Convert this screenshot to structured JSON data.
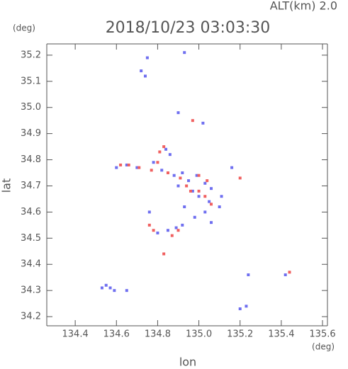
{
  "chart_data": {
    "type": "scatter",
    "title": "2018/10/23 03:03:30",
    "annotations": [
      "ALT(km) 2.0"
    ],
    "x_label": "lon",
    "y_label": "lat",
    "x_unit": "(deg)",
    "y_unit": "(deg)",
    "xlim": [
      134.262,
      135.624
    ],
    "ylim": [
      34.165,
      35.243
    ],
    "xticks": [
      134.4,
      134.6,
      134.8,
      {
        "value": 135,
        "label": "135.0"
      },
      135.2,
      135.4,
      135.6
    ],
    "yticks": [
      34.2,
      34.3,
      34.4,
      34.5,
      34.6,
      34.7,
      34.8,
      34.9,
      {
        "value": 35,
        "label": "35.0"
      },
      35.1,
      35.2
    ],
    "series": [
      {
        "color": "#6f6ff0",
        "x": [
          134.75,
          134.72,
          134.74,
          134.93,
          134.9,
          135.02,
          134.84,
          134.86,
          134.6,
          134.65,
          134.7,
          134.78,
          134.82,
          134.88,
          134.92,
          134.95,
          134.9,
          134.97,
          135.0,
          135.05,
          135.03,
          134.98,
          135.06,
          135.1,
          135.16,
          135.11,
          134.76,
          134.8,
          134.85,
          134.89,
          134.92,
          134.55,
          134.57,
          134.59,
          134.53,
          134.65,
          135.24,
          135.42,
          135.2,
          135.23,
          134.99,
          135.03,
          134.93,
          135.06
        ],
        "y": [
          35.19,
          35.14,
          35.12,
          35.21,
          34.98,
          34.94,
          34.84,
          34.82,
          34.77,
          34.78,
          34.77,
          34.79,
          34.76,
          34.74,
          34.75,
          34.72,
          34.7,
          34.68,
          34.66,
          34.64,
          34.6,
          34.58,
          34.69,
          34.62,
          34.77,
          34.66,
          34.6,
          34.52,
          34.53,
          34.54,
          34.55,
          34.32,
          34.31,
          34.3,
          34.31,
          34.3,
          34.36,
          34.36,
          34.23,
          34.24,
          34.74,
          34.71,
          34.62,
          34.56
        ]
      },
      {
        "color": "#f06060",
        "x": [
          134.97,
          134.81,
          134.83,
          134.66,
          134.71,
          134.77,
          134.8,
          134.85,
          134.91,
          134.94,
          135.0,
          135.04,
          135.0,
          135.03,
          135.06,
          135.2,
          134.76,
          134.78,
          134.87,
          134.9,
          134.83,
          135.44,
          134.96,
          134.62
        ],
        "y": [
          34.95,
          34.83,
          34.85,
          34.78,
          34.77,
          34.76,
          34.79,
          34.75,
          34.73,
          34.7,
          34.74,
          34.72,
          34.68,
          34.66,
          34.63,
          34.73,
          34.55,
          34.53,
          34.51,
          34.53,
          34.44,
          34.37,
          34.68,
          34.78
        ]
      }
    ]
  }
}
